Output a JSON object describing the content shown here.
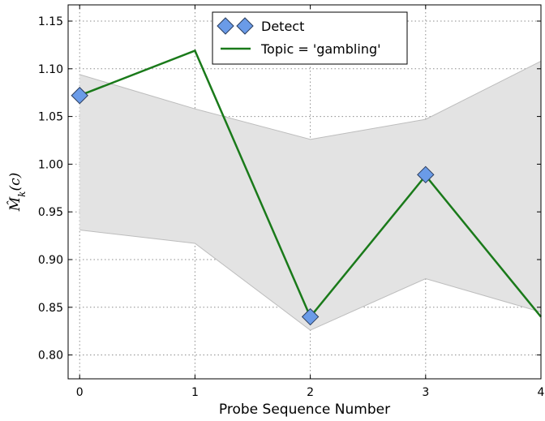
{
  "chart_data": {
    "type": "line",
    "x": [
      0,
      1,
      2,
      3,
      4
    ],
    "xlabel": "Probe Sequence Number",
    "ylabel": "M̂",
    "ylabel_sub": "k",
    "ylabel_arg": "(c)",
    "xlim": [
      -0.1,
      4
    ],
    "ylim": [
      0.775,
      1.167
    ],
    "xticks": [
      "0",
      "1",
      "2",
      "3",
      "4"
    ],
    "yticks": [
      "0.80",
      "0.85",
      "0.90",
      "0.95",
      "1.00",
      "1.05",
      "1.10",
      "1.15"
    ],
    "grid": true,
    "legend_position": "top-center",
    "band": {
      "lower": [
        0.931,
        0.917,
        0.826,
        0.88,
        0.845
      ],
      "upper": [
        1.094,
        1.058,
        1.026,
        1.047,
        1.108
      ],
      "color": "#e3e3e3",
      "edge": "#bdbdbd"
    },
    "series": [
      {
        "name": "Topic = 'gambling'",
        "kind": "line",
        "values": [
          1.072,
          1.119,
          0.84,
          0.988,
          0.84
        ],
        "color": "#1a7a1a"
      },
      {
        "name": "Detect",
        "kind": "marker",
        "x": [
          0,
          2,
          3
        ],
        "values": [
          1.072,
          0.84,
          0.989
        ],
        "color": "#6a9be8"
      }
    ]
  }
}
